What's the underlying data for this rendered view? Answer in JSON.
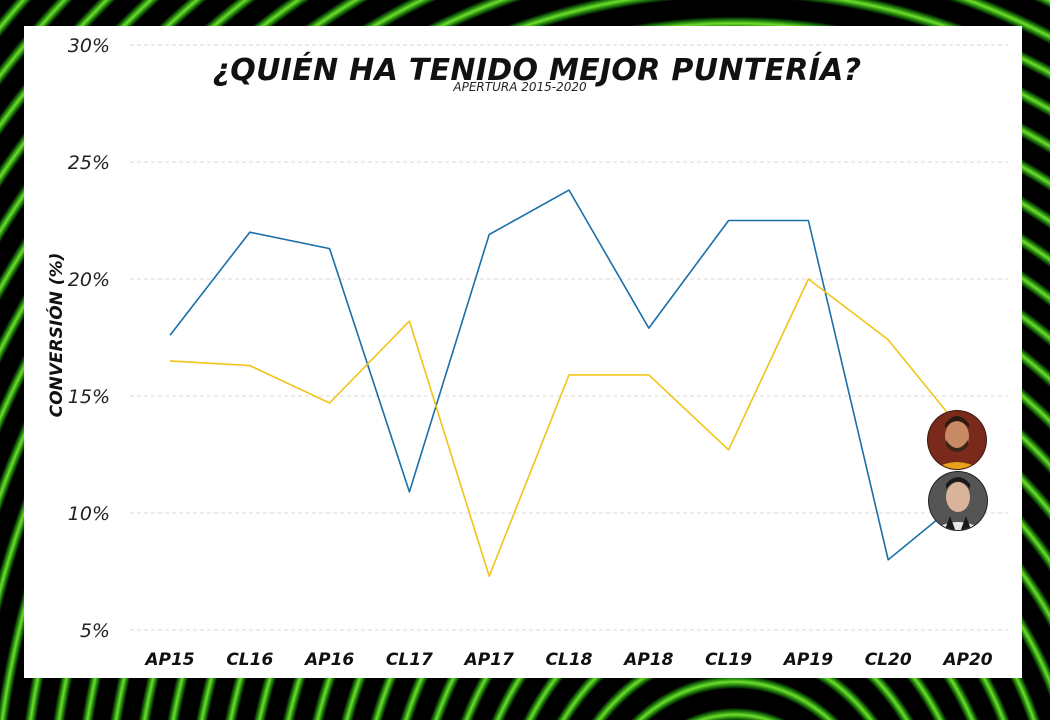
{
  "chart_data": {
    "type": "line",
    "title": "¿QUIÉN HA TENIDO MEJOR PUNTERÍA?",
    "subtitle": "APERTURA 2015-2020",
    "xlabel": "",
    "ylabel": "CONVERSIÓN (%)",
    "categories": [
      "AP15",
      "CL16",
      "AP16",
      "CL17",
      "AP17",
      "CL18",
      "AP18",
      "CL19",
      "AP19",
      "CL20",
      "AP20"
    ],
    "ylim": [
      5,
      30
    ],
    "yticks": [
      "5%",
      "10%",
      "15%",
      "20%",
      "25%",
      "30%"
    ],
    "ytick_values": [
      5,
      10,
      15,
      20,
      25,
      30
    ],
    "grid": true,
    "series": [
      {
        "color": "#1a6fa8",
        "values": [
          17.6,
          22.0,
          21.3,
          10.9,
          21.9,
          23.8,
          17.9,
          22.5,
          22.5,
          8.0,
          10.8
        ]
      },
      {
        "color": "#f0c419",
        "values": [
          16.5,
          16.3,
          14.7,
          18.2,
          7.3,
          15.9,
          15.9,
          12.7,
          20.0,
          17.4,
          13.2
        ]
      }
    ]
  },
  "player_icons": [
    "player-photo-yellow-series",
    "player-photo-blue-series"
  ]
}
